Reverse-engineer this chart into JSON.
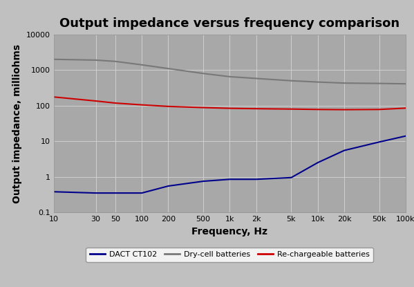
{
  "title": "Output impedance versus frequency comparison",
  "xlabel": "Frequency, Hz",
  "ylabel": "Output impedance, milliohms",
  "fig_bg_color": "#c0c0c0",
  "plot_bg_color": "#a8a8a8",
  "x_ticks_labels": [
    "10",
    "30",
    "50",
    "100",
    "200",
    "500",
    "1k",
    "2k",
    "5k",
    "10k",
    "20k",
    "50k",
    "100k"
  ],
  "x_ticks_values": [
    10,
    30,
    50,
    100,
    200,
    500,
    1000,
    2000,
    5000,
    10000,
    20000,
    50000,
    100000
  ],
  "ylim": [
    0.1,
    10000
  ],
  "xlim": [
    10,
    100000
  ],
  "yticks": [
    0.1,
    1,
    10,
    100,
    1000,
    10000
  ],
  "ytick_labels": [
    "0.1",
    "1",
    "10",
    "100",
    "1000",
    "10000"
  ],
  "series": [
    {
      "name": "DACT CT102",
      "color": "#00008B",
      "linewidth": 1.5,
      "x": [
        10,
        30,
        50,
        100,
        200,
        500,
        1000,
        2000,
        5000,
        10000,
        20000,
        50000,
        100000
      ],
      "y": [
        0.38,
        0.35,
        0.35,
        0.35,
        0.55,
        0.75,
        0.85,
        0.85,
        0.95,
        2.5,
        5.5,
        9.5,
        14
      ]
    },
    {
      "name": "Dry-cell batteries",
      "color": "#787878",
      "linewidth": 1.5,
      "x": [
        10,
        30,
        50,
        100,
        200,
        500,
        1000,
        2000,
        5000,
        10000,
        20000,
        50000,
        100000
      ],
      "y": [
        2000,
        1900,
        1750,
        1400,
        1100,
        800,
        650,
        580,
        500,
        460,
        430,
        420,
        410
      ]
    },
    {
      "name": "Re-chargeable batteries",
      "color": "#cc0000",
      "linewidth": 1.5,
      "x": [
        10,
        30,
        50,
        100,
        200,
        500,
        1000,
        2000,
        5000,
        10000,
        20000,
        50000,
        100000
      ],
      "y": [
        175,
        135,
        118,
        105,
        95,
        88,
        84,
        82,
        80,
        78,
        77,
        78,
        85
      ]
    }
  ],
  "title_fontsize": 13,
  "axis_label_fontsize": 10,
  "tick_fontsize": 8,
  "legend_fontsize": 8,
  "grid_color": "#d0d0d0",
  "grid_linewidth": 0.7
}
